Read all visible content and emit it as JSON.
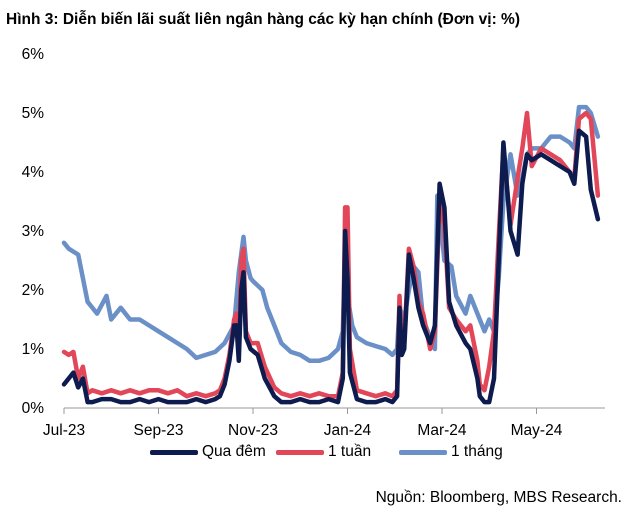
{
  "chart_data": {
    "type": "line",
    "title": "Hình 3: Diễn biến lãi suất liên ngân hàng các kỳ hạn chính (Đơn vị: %)",
    "xlabel": "",
    "ylabel": "",
    "x_tick_labels": [
      "Jul-23",
      "Sep-23",
      "Nov-23",
      "Jan-24",
      "Mar-24",
      "May-24"
    ],
    "x_tick_months": [
      0,
      2,
      4,
      6,
      8,
      10
    ],
    "x_range_months": [
      0,
      11.45
    ],
    "y_tick_labels": [
      "0%",
      "1%",
      "2%",
      "3%",
      "4%",
      "5%",
      "6%"
    ],
    "ylim": [
      0,
      6
    ],
    "series": [
      {
        "name": "1 tháng",
        "color": "#6b8fc7",
        "points": [
          [
            0.0,
            2.8
          ],
          [
            0.1,
            2.7
          ],
          [
            0.3,
            2.6
          ],
          [
            0.4,
            2.2
          ],
          [
            0.5,
            1.8
          ],
          [
            0.7,
            1.6
          ],
          [
            0.9,
            1.9
          ],
          [
            1.0,
            1.5
          ],
          [
            1.2,
            1.7
          ],
          [
            1.4,
            1.5
          ],
          [
            1.6,
            1.5
          ],
          [
            1.8,
            1.4
          ],
          [
            2.0,
            1.3
          ],
          [
            2.2,
            1.2
          ],
          [
            2.4,
            1.1
          ],
          [
            2.6,
            1.0
          ],
          [
            2.8,
            0.85
          ],
          [
            3.0,
            0.9
          ],
          [
            3.2,
            0.95
          ],
          [
            3.4,
            1.1
          ],
          [
            3.6,
            1.4
          ],
          [
            3.7,
            2.3
          ],
          [
            3.8,
            2.9
          ],
          [
            3.85,
            2.5
          ],
          [
            3.95,
            2.2
          ],
          [
            4.0,
            2.15
          ],
          [
            4.2,
            2.0
          ],
          [
            4.3,
            1.7
          ],
          [
            4.45,
            1.4
          ],
          [
            4.6,
            1.1
          ],
          [
            4.8,
            0.95
          ],
          [
            5.0,
            0.9
          ],
          [
            5.2,
            0.8
          ],
          [
            5.4,
            0.8
          ],
          [
            5.6,
            0.85
          ],
          [
            5.8,
            1.0
          ],
          [
            5.9,
            1.3
          ],
          [
            5.95,
            2.7
          ],
          [
            6.0,
            1.9
          ],
          [
            6.1,
            1.4
          ],
          [
            6.2,
            1.2
          ],
          [
            6.4,
            1.1
          ],
          [
            6.6,
            1.05
          ],
          [
            6.8,
            1.0
          ],
          [
            6.95,
            0.9
          ],
          [
            7.05,
            1.0
          ],
          [
            7.1,
            1.7
          ],
          [
            7.2,
            1.5
          ],
          [
            7.3,
            2.0
          ],
          [
            7.4,
            2.4
          ],
          [
            7.5,
            2.3
          ],
          [
            7.6,
            1.5
          ],
          [
            7.7,
            1.3
          ],
          [
            7.85,
            1.0
          ],
          [
            7.9,
            3.6
          ],
          [
            7.95,
            3.3
          ],
          [
            8.05,
            2.5
          ],
          [
            8.2,
            2.4
          ],
          [
            8.3,
            1.9
          ],
          [
            8.5,
            1.6
          ],
          [
            8.6,
            1.9
          ],
          [
            8.8,
            1.5
          ],
          [
            8.9,
            1.3
          ],
          [
            9.0,
            1.5
          ],
          [
            9.1,
            1.3
          ],
          [
            9.2,
            2.2
          ],
          [
            9.3,
            3.5
          ],
          [
            9.45,
            4.3
          ],
          [
            9.6,
            3.6
          ],
          [
            9.7,
            3.9
          ],
          [
            9.8,
            4.3
          ],
          [
            9.9,
            4.4
          ],
          [
            10.1,
            4.4
          ],
          [
            10.3,
            4.6
          ],
          [
            10.5,
            4.6
          ],
          [
            10.7,
            4.5
          ],
          [
            10.8,
            4.4
          ],
          [
            10.9,
            5.1
          ],
          [
            11.05,
            5.1
          ],
          [
            11.15,
            5.0
          ],
          [
            11.3,
            4.6
          ]
        ]
      },
      {
        "name": "1 tuần",
        "color": "#e24659",
        "points": [
          [
            0.0,
            0.95
          ],
          [
            0.1,
            0.9
          ],
          [
            0.2,
            0.95
          ],
          [
            0.3,
            0.5
          ],
          [
            0.4,
            0.7
          ],
          [
            0.5,
            0.25
          ],
          [
            0.6,
            0.3
          ],
          [
            0.8,
            0.25
          ],
          [
            1.0,
            0.3
          ],
          [
            1.2,
            0.25
          ],
          [
            1.4,
            0.3
          ],
          [
            1.6,
            0.25
          ],
          [
            1.8,
            0.3
          ],
          [
            2.0,
            0.3
          ],
          [
            2.2,
            0.25
          ],
          [
            2.4,
            0.3
          ],
          [
            2.6,
            0.2
          ],
          [
            2.8,
            0.25
          ],
          [
            3.0,
            0.2
          ],
          [
            3.2,
            0.25
          ],
          [
            3.3,
            0.3
          ],
          [
            3.4,
            0.5
          ],
          [
            3.5,
            0.9
          ],
          [
            3.6,
            1.5
          ],
          [
            3.65,
            1.6
          ],
          [
            3.7,
            1.0
          ],
          [
            3.75,
            2.5
          ],
          [
            3.8,
            2.7
          ],
          [
            3.85,
            1.3
          ],
          [
            3.95,
            1.1
          ],
          [
            4.1,
            1.1
          ],
          [
            4.25,
            0.7
          ],
          [
            4.45,
            0.35
          ],
          [
            4.6,
            0.25
          ],
          [
            4.8,
            0.2
          ],
          [
            5.0,
            0.25
          ],
          [
            5.2,
            0.2
          ],
          [
            5.4,
            0.25
          ],
          [
            5.6,
            0.2
          ],
          [
            5.8,
            0.2
          ],
          [
            5.9,
            0.6
          ],
          [
            5.95,
            3.4
          ],
          [
            6.0,
            3.4
          ],
          [
            6.05,
            1.0
          ],
          [
            6.2,
            0.3
          ],
          [
            6.4,
            0.25
          ],
          [
            6.6,
            0.2
          ],
          [
            6.8,
            0.25
          ],
          [
            6.95,
            0.2
          ],
          [
            7.05,
            0.3
          ],
          [
            7.1,
            1.9
          ],
          [
            7.15,
            1.0
          ],
          [
            7.2,
            1.1
          ],
          [
            7.3,
            2.7
          ],
          [
            7.4,
            2.4
          ],
          [
            7.5,
            1.8
          ],
          [
            7.6,
            1.6
          ],
          [
            7.75,
            1.0
          ],
          [
            7.85,
            1.3
          ],
          [
            7.95,
            3.5
          ],
          [
            8.05,
            3.1
          ],
          [
            8.15,
            1.7
          ],
          [
            8.3,
            1.5
          ],
          [
            8.5,
            1.3
          ],
          [
            8.6,
            1.4
          ],
          [
            8.75,
            0.8
          ],
          [
            8.8,
            0.4
          ],
          [
            8.9,
            0.3
          ],
          [
            9.0,
            0.7
          ],
          [
            9.1,
            1.3
          ],
          [
            9.2,
            2.9
          ],
          [
            9.3,
            4.4
          ],
          [
            9.45,
            3.1
          ],
          [
            9.6,
            3.9
          ],
          [
            9.7,
            4.4
          ],
          [
            9.8,
            5.0
          ],
          [
            9.9,
            4.1
          ],
          [
            10.1,
            4.4
          ],
          [
            10.3,
            4.3
          ],
          [
            10.5,
            4.2
          ],
          [
            10.7,
            4.0
          ],
          [
            10.8,
            3.9
          ],
          [
            10.9,
            4.9
          ],
          [
            11.05,
            5.0
          ],
          [
            11.15,
            4.9
          ],
          [
            11.3,
            3.6
          ]
        ]
      },
      {
        "name": "Qua đêm",
        "color": "#0d1b4f",
        "points": [
          [
            0.0,
            0.4
          ],
          [
            0.1,
            0.5
          ],
          [
            0.2,
            0.6
          ],
          [
            0.3,
            0.35
          ],
          [
            0.4,
            0.5
          ],
          [
            0.5,
            0.1
          ],
          [
            0.6,
            0.1
          ],
          [
            0.8,
            0.15
          ],
          [
            1.0,
            0.15
          ],
          [
            1.2,
            0.1
          ],
          [
            1.4,
            0.1
          ],
          [
            1.6,
            0.15
          ],
          [
            1.8,
            0.1
          ],
          [
            2.0,
            0.15
          ],
          [
            2.2,
            0.1
          ],
          [
            2.4,
            0.1
          ],
          [
            2.6,
            0.1
          ],
          [
            2.8,
            0.15
          ],
          [
            3.0,
            0.1
          ],
          [
            3.2,
            0.15
          ],
          [
            3.3,
            0.2
          ],
          [
            3.4,
            0.4
          ],
          [
            3.5,
            0.8
          ],
          [
            3.6,
            1.4
          ],
          [
            3.65,
            1.4
          ],
          [
            3.7,
            0.8
          ],
          [
            3.75,
            2.0
          ],
          [
            3.8,
            2.3
          ],
          [
            3.85,
            1.2
          ],
          [
            3.95,
            1.0
          ],
          [
            4.1,
            0.9
          ],
          [
            4.25,
            0.5
          ],
          [
            4.45,
            0.2
          ],
          [
            4.6,
            0.1
          ],
          [
            4.8,
            0.1
          ],
          [
            5.0,
            0.15
          ],
          [
            5.2,
            0.1
          ],
          [
            5.4,
            0.1
          ],
          [
            5.6,
            0.15
          ],
          [
            5.8,
            0.1
          ],
          [
            5.9,
            0.5
          ],
          [
            5.95,
            3.0
          ],
          [
            6.0,
            2.2
          ],
          [
            6.05,
            0.6
          ],
          [
            6.2,
            0.15
          ],
          [
            6.4,
            0.1
          ],
          [
            6.6,
            0.1
          ],
          [
            6.8,
            0.15
          ],
          [
            6.95,
            0.1
          ],
          [
            7.05,
            0.2
          ],
          [
            7.1,
            1.7
          ],
          [
            7.15,
            0.9
          ],
          [
            7.2,
            1.0
          ],
          [
            7.3,
            2.6
          ],
          [
            7.4,
            2.2
          ],
          [
            7.5,
            1.7
          ],
          [
            7.6,
            1.4
          ],
          [
            7.75,
            1.1
          ],
          [
            7.85,
            1.4
          ],
          [
            7.95,
            3.8
          ],
          [
            8.05,
            3.4
          ],
          [
            8.15,
            1.8
          ],
          [
            8.3,
            1.4
          ],
          [
            8.5,
            1.1
          ],
          [
            8.6,
            1.0
          ],
          [
            8.75,
            0.5
          ],
          [
            8.8,
            0.2
          ],
          [
            8.9,
            0.1
          ],
          [
            9.0,
            0.1
          ],
          [
            9.1,
            0.5
          ],
          [
            9.2,
            2.5
          ],
          [
            9.3,
            4.5
          ],
          [
            9.45,
            3.0
          ],
          [
            9.6,
            2.6
          ],
          [
            9.7,
            3.8
          ],
          [
            9.8,
            4.3
          ],
          [
            9.9,
            4.2
          ],
          [
            10.1,
            4.3
          ],
          [
            10.3,
            4.2
          ],
          [
            10.5,
            4.1
          ],
          [
            10.7,
            4.0
          ],
          [
            10.8,
            3.8
          ],
          [
            10.9,
            4.7
          ],
          [
            11.05,
            4.6
          ],
          [
            11.15,
            3.7
          ],
          [
            11.3,
            3.2
          ]
        ]
      }
    ],
    "legend_order": [
      "Qua đêm",
      "1 tuần",
      "1 tháng"
    ],
    "legend_position": "bottom",
    "grid": false
  },
  "source": "Nguồn: Bloomberg, MBS Research."
}
